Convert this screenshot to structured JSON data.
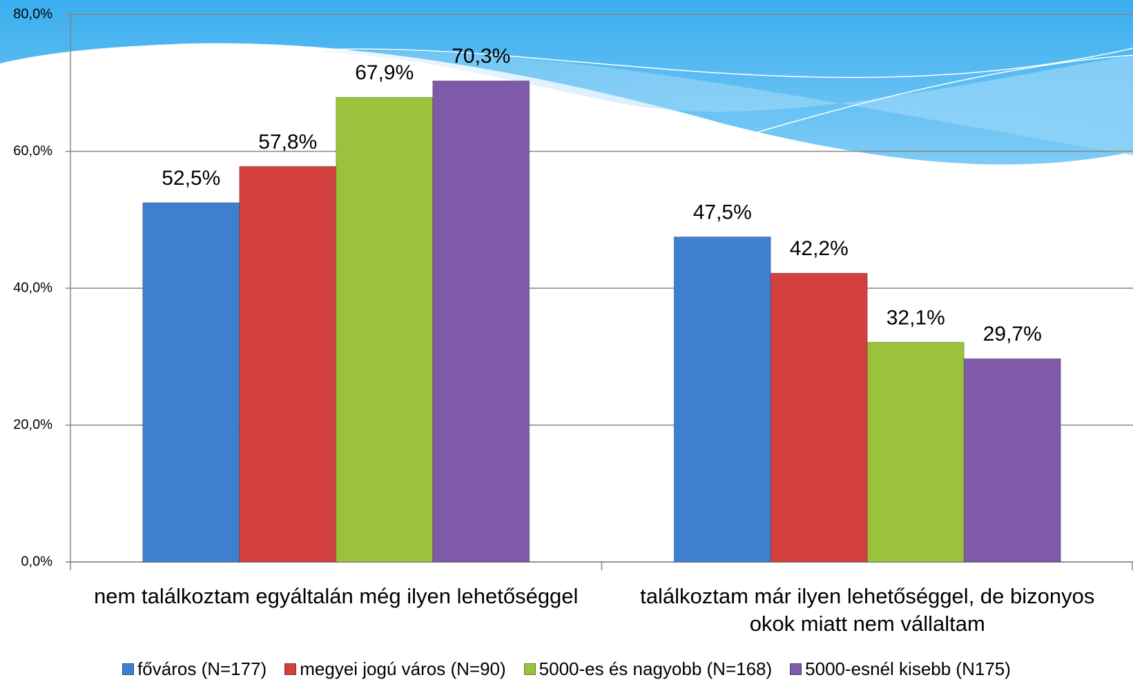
{
  "chart_data": {
    "type": "bar",
    "categories": [
      "nem találkoztam egyáltalán még ilyen lehetőséggel",
      "találkoztam már ilyen lehetőséggel, de bizonyos okok miatt nem vállaltam"
    ],
    "series": [
      {
        "name": "főváros (N=177)",
        "color": "#3f7fd0",
        "values": [
          52.5,
          47.5
        ],
        "value_labels": [
          "52,5%",
          "47,5%"
        ]
      },
      {
        "name": "megyei jogú város (N=90)",
        "color": "#d34040",
        "values": [
          57.8,
          42.2
        ],
        "value_labels": [
          "57,8%",
          "42,2%"
        ]
      },
      {
        "name": "5000-es és nagyobb (N=168)",
        "color": "#9bc23d",
        "values": [
          67.9,
          32.1
        ],
        "value_labels": [
          "67,9%",
          "32,1%"
        ]
      },
      {
        "name": "5000-esnél kisebb (N175)",
        "color": "#7e5aa9",
        "values": [
          70.3,
          29.7
        ],
        "value_labels": [
          "70,3%",
          "29,7%"
        ]
      }
    ],
    "ylim": [
      0,
      80
    ],
    "yticks": [
      {
        "value": 0,
        "label": "0,0%"
      },
      {
        "value": 20,
        "label": "20,0%"
      },
      {
        "value": 40,
        "label": "40,0%"
      },
      {
        "value": 60,
        "label": "60,0%"
      },
      {
        "value": 80,
        "label": "80,0%"
      }
    ],
    "grid": true,
    "legend": "bottom"
  }
}
